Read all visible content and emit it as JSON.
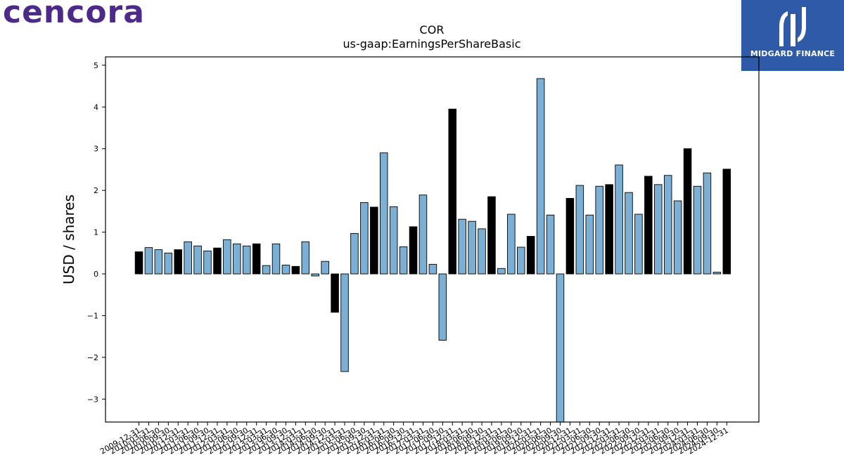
{
  "brand": {
    "name": "cencora",
    "color": "#4d2a8a"
  },
  "badge": {
    "label": "MIDGARD FINANCE",
    "color": "#2f5aa8"
  },
  "chart_data": {
    "type": "bar",
    "title": "COR",
    "subtitle": "us-gaap:EarningsPerShareBasic",
    "ylabel": "USD / shares",
    "xlabel": "",
    "ylim": [
      -3.55,
      5.2
    ],
    "yticks": [
      -3,
      -2,
      -1,
      0,
      1,
      2,
      3,
      4,
      5
    ],
    "ytick_labels": [
      "−3",
      "−2",
      "−1",
      "0",
      "1",
      "2",
      "3",
      "4",
      "5"
    ],
    "colors": {
      "annual": "#000000",
      "quarterly": "#7bafd4"
    },
    "categories": [
      "2009-12-31",
      "2010-03-31",
      "2010-06-30",
      "2010-09-30",
      "2010-12-31",
      "2011-03-31",
      "2011-06-30",
      "2011-09-30",
      "2011-12-31",
      "2012-03-31",
      "2012-06-30",
      "2012-09-30",
      "2012-12-31",
      "2013-03-31",
      "2013-06-30",
      "2013-09-30",
      "2013-12-31",
      "2014-03-31",
      "2014-06-30",
      "2014-09-30",
      "2014-12-31",
      "2015-03-31",
      "2015-06-30",
      "2015-09-30",
      "2015-12-31",
      "2016-03-31",
      "2016-06-30",
      "2016-09-30",
      "2016-12-31",
      "2017-03-31",
      "2017-06-30",
      "2017-09-30",
      "2017-12-31",
      "2018-03-31",
      "2018-06-30",
      "2018-09-30",
      "2018-12-31",
      "2019-03-31",
      "2019-06-30",
      "2019-09-30",
      "2019-12-31",
      "2020-03-31",
      "2020-06-30",
      "2020-09-30",
      "2020-12-31",
      "2021-03-31",
      "2021-06-30",
      "2021-09-30",
      "2021-12-31",
      "2022-03-31",
      "2022-06-30",
      "2022-09-30",
      "2022-12-31",
      "2023-03-31",
      "2023-06-30",
      "2023-09-30",
      "2023-12-31",
      "2024-03-31",
      "2024-06-30",
      "2024-09-30",
      "2024-12-31"
    ],
    "values": [
      0.53,
      0.63,
      0.58,
      0.5,
      0.58,
      0.77,
      0.67,
      0.55,
      0.62,
      0.82,
      0.72,
      0.67,
      0.72,
      0.2,
      0.72,
      0.21,
      0.18,
      0.77,
      -0.05,
      0.3,
      -0.92,
      -2.34,
      0.97,
      1.71,
      1.6,
      2.9,
      1.61,
      0.65,
      1.13,
      1.89,
      0.23,
      -1.59,
      3.95,
      1.31,
      1.26,
      1.08,
      1.85,
      0.13,
      1.43,
      0.64,
      0.9,
      4.68,
      1.41,
      -3.6,
      1.81,
      2.12,
      1.41,
      2.1,
      2.14,
      2.61,
      1.95,
      1.43,
      2.34,
      2.14,
      2.36,
      1.75,
      3.0,
      2.1,
      2.42,
      0.04,
      2.51
    ],
    "annual_flags": [
      1,
      0,
      0,
      0,
      1,
      0,
      0,
      0,
      1,
      0,
      0,
      0,
      1,
      0,
      0,
      0,
      1,
      0,
      0,
      0,
      1,
      0,
      0,
      0,
      1,
      0,
      0,
      0,
      1,
      0,
      0,
      0,
      1,
      0,
      0,
      0,
      1,
      0,
      0,
      0,
      1,
      0,
      0,
      0,
      1,
      0,
      0,
      0,
      1,
      0,
      0,
      0,
      1,
      0,
      0,
      0,
      1,
      0,
      0,
      0,
      1
    ],
    "grid": false,
    "legend": "none"
  }
}
